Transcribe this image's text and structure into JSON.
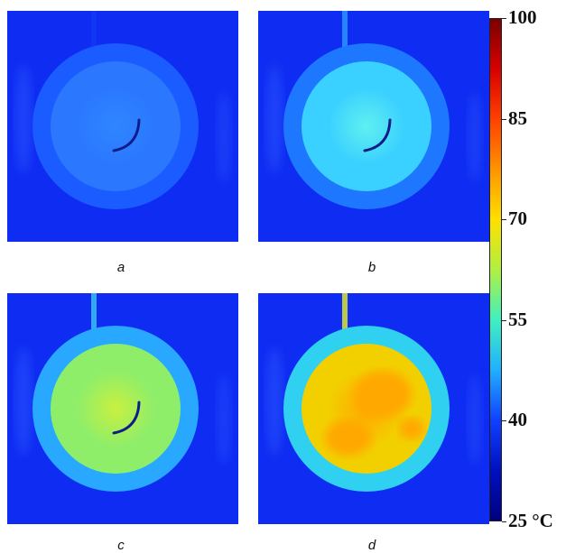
{
  "panels": [
    {
      "id": "a",
      "caption": "a",
      "glass_color": "#1a5cff",
      "core_color": "#2b78ff",
      "hot_color": "#2f86ff",
      "tube_color": "#1d4cff",
      "has_thermocouple": true,
      "hotspot": false
    },
    {
      "id": "b",
      "caption": "b",
      "glass_color": "#1e78ff",
      "core_color": "#3ad0ff",
      "hot_color": "#5ff0f0",
      "tube_color": "#2a9cff",
      "has_thermocouple": true,
      "hotspot": false
    },
    {
      "id": "c",
      "caption": "c",
      "glass_color": "#28a8ff",
      "core_color": "#8eee6a",
      "hot_color": "#c8f040",
      "tube_color": "#3ac8f0",
      "has_thermocouple": true,
      "hotspot": false
    },
    {
      "id": "d",
      "caption": "d",
      "glass_color": "#30d0f0",
      "core_color": "#f2d000",
      "hot_color": "#ffa800",
      "tube_color": "#e8f020",
      "has_thermocouple": false,
      "hotspot": true
    }
  ],
  "colorbar": {
    "unit": "°C",
    "min": 25,
    "max": 100,
    "ticks": [
      {
        "value": 100,
        "label": "100"
      },
      {
        "value": 85,
        "label": "85"
      },
      {
        "value": 70,
        "label": "70"
      },
      {
        "value": 55,
        "label": "55"
      },
      {
        "value": 40,
        "label": "40"
      },
      {
        "value": 25,
        "label": "25 °C"
      }
    ],
    "gradient_colors": [
      "#7a0000",
      "#d80000",
      "#ff4000",
      "#ff9400",
      "#ffe000",
      "#b0f040",
      "#40f0c0",
      "#20b0ff",
      "#1040ff",
      "#0010c0",
      "#000080"
    ]
  }
}
